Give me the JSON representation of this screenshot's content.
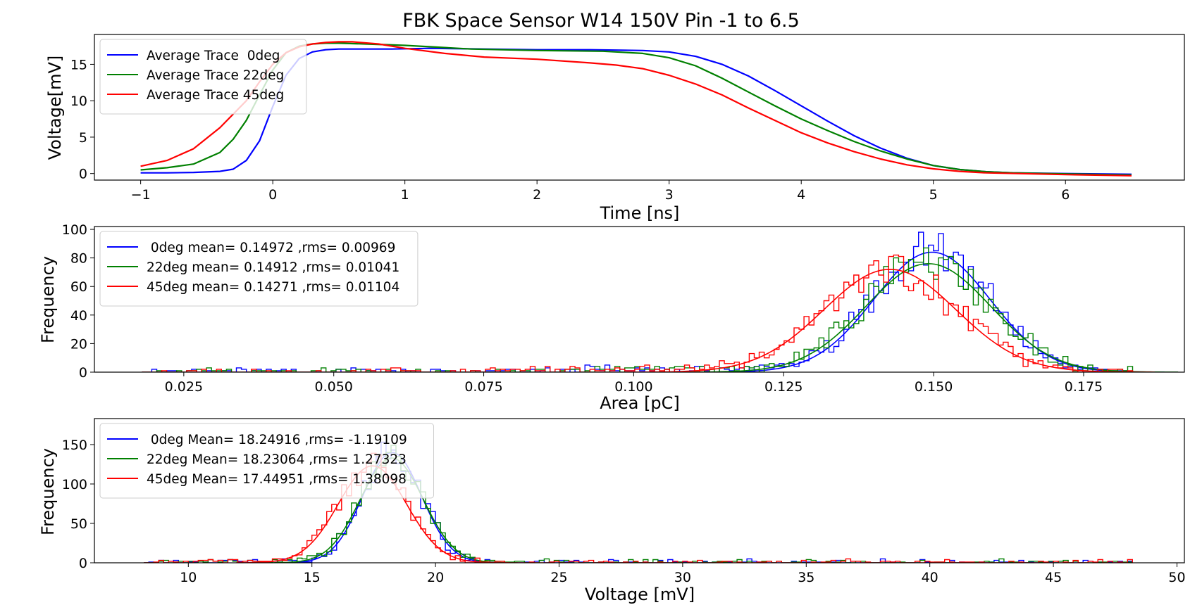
{
  "figure": {
    "title": "FBK Space Sensor W14 150V Pin -1 to 6.5"
  },
  "colors": {
    "0deg": "#0000ff",
    "22deg": "#008000",
    "45deg": "#ff0000"
  },
  "chart_data": [
    {
      "type": "line",
      "xlabel": "Time [ns]",
      "ylabel": "Voltage[mV]",
      "xlim": [
        -1.35,
        6.9
      ],
      "ylim": [
        -0.9,
        19.1
      ],
      "xticks": [
        -1,
        0,
        1,
        2,
        3,
        4,
        5,
        6
      ],
      "xtick_labels": [
        "−1",
        "0",
        "1",
        "2",
        "3",
        "4",
        "5",
        "6"
      ],
      "yticks": [
        0,
        5,
        10,
        15
      ],
      "legend": "top-left",
      "grid": false,
      "series": [
        {
          "name": "Average Trace  0deg",
          "color": "#0000ff",
          "x": [
            -1,
            -0.8,
            -0.6,
            -0.4,
            -0.3,
            -0.2,
            -0.1,
            0,
            0.1,
            0.2,
            0.3,
            0.4,
            0.5,
            0.7,
            0.9,
            1.2,
            1.6,
            2,
            2.4,
            2.8,
            3,
            3.2,
            3.4,
            3.6,
            3.8,
            4,
            4.2,
            4.4,
            4.6,
            4.8,
            5,
            5.2,
            5.4,
            5.6,
            6,
            6.5
          ],
          "y": [
            0.1,
            0.1,
            0.15,
            0.3,
            0.6,
            1.8,
            4.5,
            9.2,
            13.5,
            15.8,
            16.7,
            17.0,
            17.1,
            17.1,
            17.1,
            17.2,
            17.1,
            17.0,
            17.0,
            16.9,
            16.7,
            16.1,
            15.0,
            13.4,
            11.4,
            9.3,
            7.2,
            5.2,
            3.5,
            2.1,
            1.1,
            0.55,
            0.25,
            0.1,
            0.0,
            -0.1
          ]
        },
        {
          "name": "Average Trace 22deg",
          "color": "#008000",
          "x": [
            -1,
            -0.8,
            -0.6,
            -0.4,
            -0.3,
            -0.2,
            -0.1,
            0,
            0.1,
            0.2,
            0.3,
            0.4,
            0.5,
            0.7,
            1,
            1.5,
            2,
            2.5,
            2.8,
            3,
            3.2,
            3.4,
            3.6,
            3.8,
            4,
            4.2,
            4.4,
            4.6,
            4.8,
            5,
            5.2,
            5.4,
            5.6,
            6,
            6.5
          ],
          "y": [
            0.5,
            0.8,
            1.3,
            2.9,
            4.7,
            7.3,
            10.8,
            14.2,
            16.6,
            17.5,
            17.8,
            17.9,
            17.9,
            17.8,
            17.6,
            17.1,
            16.9,
            16.8,
            16.5,
            15.9,
            14.8,
            13.1,
            11.2,
            9.3,
            7.5,
            5.9,
            4.4,
            3.1,
            2.0,
            1.1,
            0.55,
            0.25,
            0.1,
            -0.05,
            -0.2
          ]
        },
        {
          "name": "Average Trace 45deg",
          "color": "#ff0000",
          "x": [
            -1,
            -0.8,
            -0.6,
            -0.4,
            -0.2,
            -0.1,
            0,
            0.1,
            0.2,
            0.3,
            0.4,
            0.5,
            0.6,
            0.8,
            1,
            1.3,
            1.6,
            2,
            2.4,
            2.6,
            2.8,
            3,
            3.2,
            3.4,
            3.6,
            3.8,
            4,
            4.2,
            4.4,
            4.6,
            4.8,
            5,
            5.2,
            5.4,
            6,
            6.5
          ],
          "y": [
            1.0,
            1.8,
            3.4,
            6.3,
            10.0,
            12.6,
            15.0,
            16.6,
            17.4,
            17.8,
            18.0,
            18.1,
            18.1,
            17.8,
            17.2,
            16.5,
            16.0,
            15.7,
            15.2,
            14.9,
            14.4,
            13.5,
            12.3,
            10.8,
            9.0,
            7.3,
            5.6,
            4.2,
            3.0,
            2.0,
            1.2,
            0.65,
            0.3,
            0.1,
            -0.15,
            -0.3
          ]
        }
      ]
    },
    {
      "type": "histogram",
      "xlabel": "Area [pC]",
      "ylabel": "Frequency",
      "xlim": [
        0.0101,
        0.1918
      ],
      "ylim": [
        0,
        102
      ],
      "xticks": [
        0.025,
        0.05,
        0.075,
        0.1,
        0.125,
        0.15,
        0.175
      ],
      "xtick_labels": [
        "0.025",
        "0.050",
        "0.075",
        "0.100",
        "0.125",
        "0.150",
        "0.175"
      ],
      "yticks": [
        0,
        20,
        40,
        60,
        80,
        100
      ],
      "bin_range": [
        0.018,
        0.184
      ],
      "bins": 200,
      "legend": "top-left",
      "series": [
        {
          "label": " 0deg mean= 0.14972 ,rms= 0.00969",
          "color": "#0000ff",
          "mean": 0.14972,
          "rms": 0.00969,
          "fit_peak": 84
        },
        {
          "label": "22deg mean= 0.14912 ,rms= 0.01041",
          "color": "#008000",
          "mean": 0.14912,
          "rms": 0.01041,
          "fit_peak": 76
        },
        {
          "label": "45deg mean= 0.14271 ,rms= 0.01104",
          "color": "#ff0000",
          "mean": 0.14271,
          "rms": 0.01104,
          "fit_peak": 72
        }
      ]
    },
    {
      "type": "histogram",
      "xlabel": "Voltage [mV]",
      "ylabel": "Frequency",
      "xlim": [
        6.2,
        50.3
      ],
      "ylim": [
        0,
        183
      ],
      "xticks": [
        10,
        15,
        20,
        25,
        30,
        35,
        40,
        45,
        50
      ],
      "xtick_labels": [
        "10",
        "15",
        "20",
        "25",
        "30",
        "35",
        "40",
        "45",
        "50"
      ],
      "yticks": [
        0,
        50,
        100,
        150
      ],
      "bin_range": [
        8.2,
        48.2
      ],
      "bins": 200,
      "legend": "top-left",
      "series": [
        {
          "label": " 0deg Mean= 18.24916 ,rms= -1.19109",
          "color": "#0000ff",
          "mean": 18.24916,
          "rms": 1.19109,
          "fit_peak": 140
        },
        {
          "label": "22deg Mean= 18.23064 ,rms= 1.27323",
          "color": "#008000",
          "mean": 18.23064,
          "rms": 1.27323,
          "fit_peak": 133
        },
        {
          "label": "45deg Mean= 17.44951 ,rms= 1.38098",
          "color": "#ff0000",
          "mean": 17.44951,
          "rms": 1.38098,
          "fit_peak": 123
        }
      ]
    }
  ]
}
